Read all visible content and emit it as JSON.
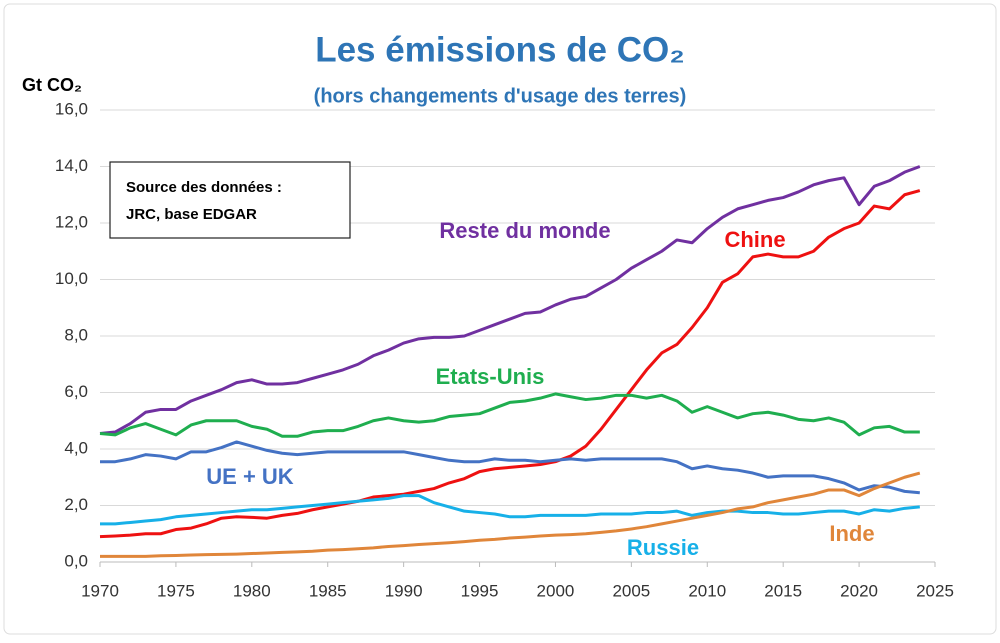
{
  "chart_data": {
    "type": "line",
    "title": "Les émissions de CO₂",
    "subtitle": "(hors changements d'usage des terres)",
    "y_axis_label": "Gt CO₂",
    "annotations": [
      "Source des données :",
      "JRC, base EDGAR"
    ],
    "x": [
      1970,
      1971,
      1972,
      1973,
      1974,
      1975,
      1976,
      1977,
      1978,
      1979,
      1980,
      1981,
      1982,
      1983,
      1984,
      1985,
      1986,
      1987,
      1988,
      1989,
      1990,
      1991,
      1992,
      1993,
      1994,
      1995,
      1996,
      1997,
      1998,
      1999,
      2000,
      2001,
      2002,
      2003,
      2004,
      2005,
      2006,
      2007,
      2008,
      2009,
      2010,
      2011,
      2012,
      2013,
      2014,
      2015,
      2016,
      2017,
      2018,
      2019,
      2020,
      2021,
      2022,
      2023,
      2024
    ],
    "series": [
      {
        "name": "Reste du monde",
        "color": "#7030a0",
        "values": [
          4.55,
          4.6,
          4.9,
          5.3,
          5.4,
          5.4,
          5.7,
          5.9,
          6.1,
          6.35,
          6.45,
          6.3,
          6.3,
          6.35,
          6.5,
          6.65,
          6.8,
          7.0,
          7.3,
          7.5,
          7.75,
          7.9,
          7.95,
          7.95,
          8.0,
          8.2,
          8.4,
          8.6,
          8.8,
          8.85,
          9.1,
          9.3,
          9.4,
          9.7,
          10.0,
          10.4,
          10.7,
          11.0,
          11.4,
          11.3,
          11.8,
          12.2,
          12.5,
          12.65,
          12.8,
          12.9,
          13.1,
          13.35,
          13.5,
          13.6,
          12.65,
          13.3,
          13.5,
          13.8,
          14.0
        ]
      },
      {
        "name": "Chine",
        "color": "#ee1111",
        "values": [
          0.9,
          0.92,
          0.95,
          1.0,
          1.0,
          1.15,
          1.2,
          1.35,
          1.55,
          1.6,
          1.58,
          1.55,
          1.65,
          1.72,
          1.85,
          1.95,
          2.05,
          2.15,
          2.3,
          2.35,
          2.4,
          2.5,
          2.6,
          2.8,
          2.95,
          3.2,
          3.3,
          3.35,
          3.4,
          3.45,
          3.55,
          3.75,
          4.1,
          4.7,
          5.4,
          6.1,
          6.8,
          7.4,
          7.7,
          8.3,
          9.0,
          9.9,
          10.2,
          10.8,
          10.9,
          10.8,
          10.8,
          11.0,
          11.5,
          11.8,
          12.0,
          12.6,
          12.5,
          13.0,
          13.15
        ]
      },
      {
        "name": "Etats-Unis",
        "color": "#1fae4f",
        "values": [
          4.55,
          4.5,
          4.75,
          4.9,
          4.7,
          4.5,
          4.85,
          5.0,
          5.0,
          5.0,
          4.8,
          4.7,
          4.45,
          4.45,
          4.6,
          4.65,
          4.65,
          4.8,
          5.0,
          5.1,
          5.0,
          4.95,
          5.0,
          5.15,
          5.2,
          5.25,
          5.45,
          5.65,
          5.7,
          5.8,
          5.95,
          5.85,
          5.75,
          5.8,
          5.9,
          5.9,
          5.8,
          5.9,
          5.7,
          5.3,
          5.5,
          5.3,
          5.1,
          5.25,
          5.3,
          5.2,
          5.05,
          5.0,
          5.1,
          4.95,
          4.5,
          4.75,
          4.8,
          4.6,
          4.6
        ]
      },
      {
        "name": "UE + UK",
        "color": "#4472c4",
        "values": [
          3.55,
          3.55,
          3.65,
          3.8,
          3.75,
          3.65,
          3.9,
          3.9,
          4.05,
          4.25,
          4.1,
          3.95,
          3.85,
          3.8,
          3.85,
          3.9,
          3.9,
          3.9,
          3.9,
          3.9,
          3.9,
          3.8,
          3.7,
          3.6,
          3.55,
          3.55,
          3.65,
          3.6,
          3.6,
          3.55,
          3.6,
          3.65,
          3.6,
          3.65,
          3.65,
          3.65,
          3.65,
          3.65,
          3.55,
          3.3,
          3.4,
          3.3,
          3.25,
          3.15,
          3.0,
          3.05,
          3.05,
          3.05,
          2.95,
          2.8,
          2.55,
          2.7,
          2.65,
          2.5,
          2.45
        ]
      },
      {
        "name": "Russie",
        "color": "#17b0e8",
        "values": [
          1.35,
          1.35,
          1.4,
          1.45,
          1.5,
          1.6,
          1.65,
          1.7,
          1.75,
          1.8,
          1.85,
          1.85,
          1.9,
          1.95,
          2.0,
          2.05,
          2.1,
          2.15,
          2.2,
          2.25,
          2.35,
          2.35,
          2.1,
          1.95,
          1.8,
          1.75,
          1.7,
          1.6,
          1.6,
          1.65,
          1.65,
          1.65,
          1.65,
          1.7,
          1.7,
          1.7,
          1.75,
          1.75,
          1.8,
          1.65,
          1.75,
          1.8,
          1.8,
          1.75,
          1.75,
          1.7,
          1.7,
          1.75,
          1.8,
          1.8,
          1.7,
          1.85,
          1.8,
          1.9,
          1.95
        ]
      },
      {
        "name": "Inde",
        "color": "#e0863a",
        "values": [
          0.2,
          0.2,
          0.2,
          0.2,
          0.22,
          0.23,
          0.25,
          0.26,
          0.27,
          0.28,
          0.3,
          0.32,
          0.34,
          0.36,
          0.38,
          0.42,
          0.44,
          0.47,
          0.5,
          0.55,
          0.58,
          0.62,
          0.65,
          0.68,
          0.72,
          0.77,
          0.8,
          0.85,
          0.88,
          0.92,
          0.95,
          0.97,
          1.0,
          1.05,
          1.1,
          1.17,
          1.25,
          1.35,
          1.45,
          1.55,
          1.65,
          1.75,
          1.88,
          1.95,
          2.1,
          2.2,
          2.3,
          2.4,
          2.55,
          2.55,
          2.35,
          2.6,
          2.8,
          3.0,
          3.15
        ]
      }
    ],
    "xlim": [
      1970,
      2025
    ],
    "xticks": [
      1970,
      1975,
      1980,
      1985,
      1990,
      1995,
      2000,
      2005,
      2010,
      2015,
      2020,
      2025
    ],
    "ylim": [
      0,
      16
    ],
    "yticks": [
      {
        "value": 0,
        "label": "0,0"
      },
      {
        "value": 2,
        "label": "2,0"
      },
      {
        "value": 4,
        "label": "4,0"
      },
      {
        "value": 6,
        "label": "6,0"
      },
      {
        "value": 8,
        "label": "8,0"
      },
      {
        "value": 10,
        "label": "10,0"
      },
      {
        "value": 12,
        "label": "12,0"
      },
      {
        "value": 14,
        "label": "14,0"
      },
      {
        "value": 16,
        "label": "16,0"
      }
    ],
    "grid": true
  }
}
